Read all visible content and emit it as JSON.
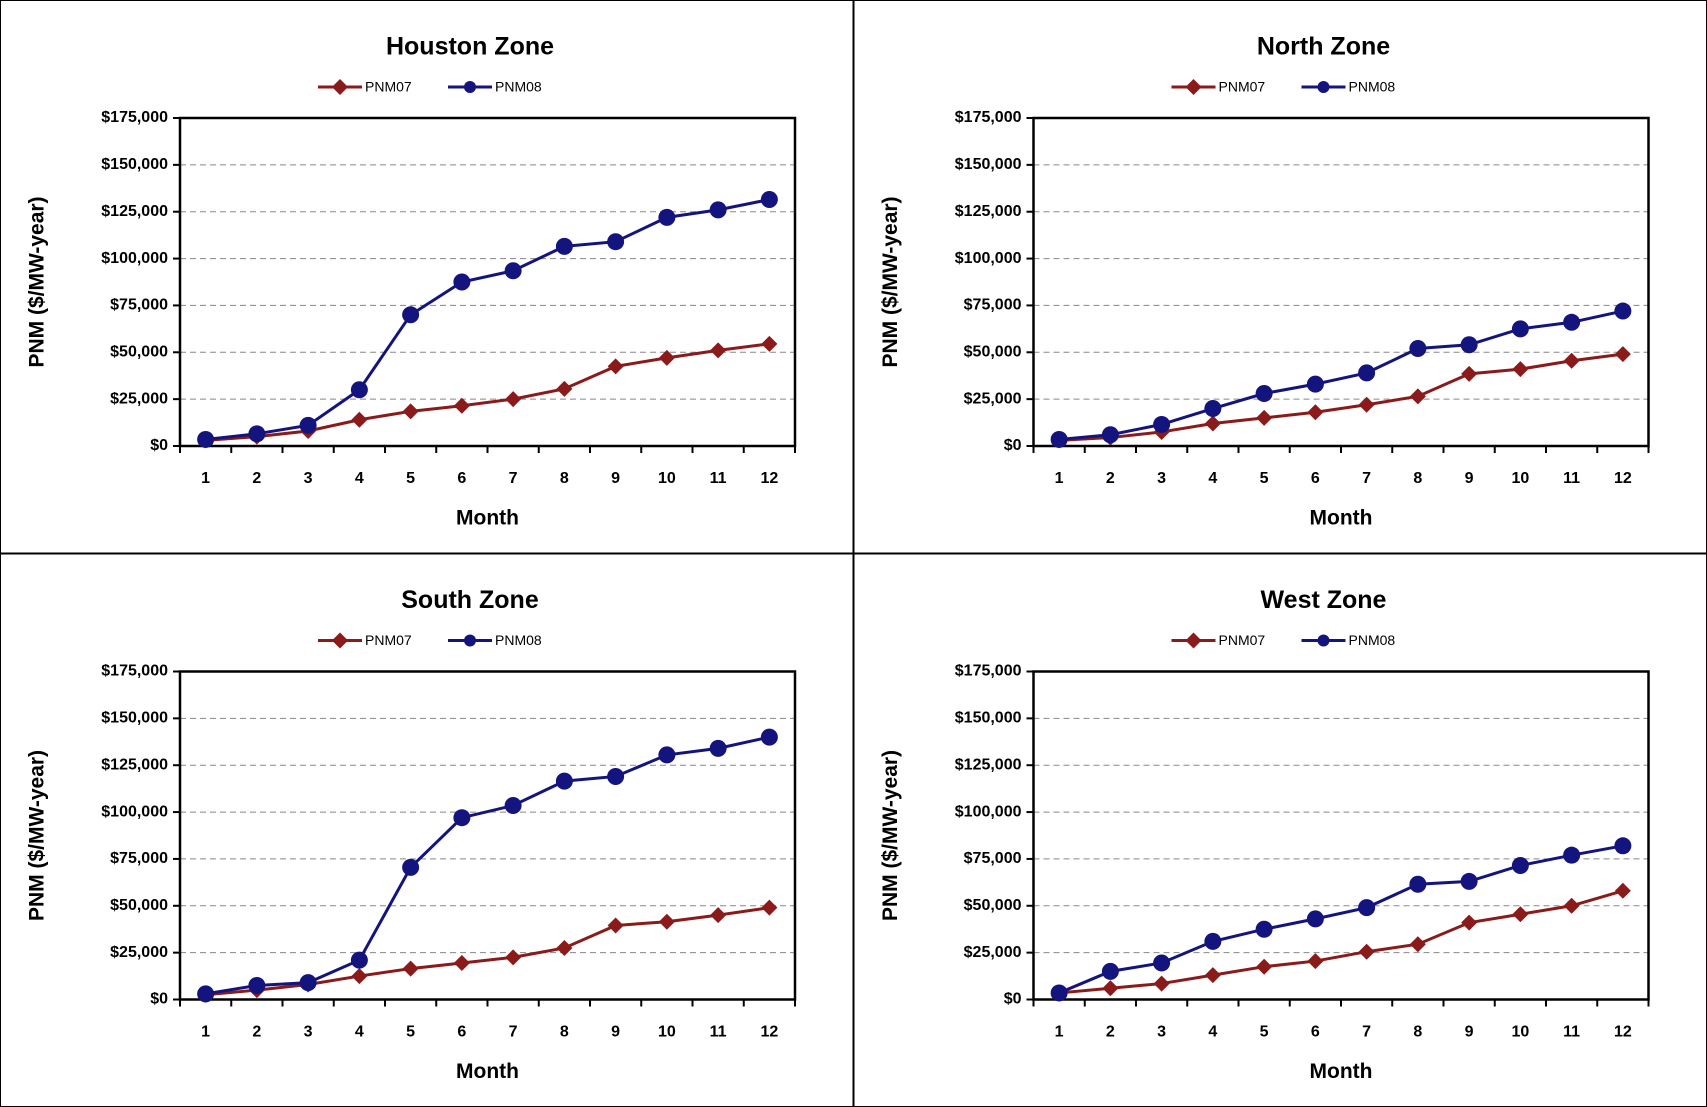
{
  "chart_data": [
    {
      "type": "line",
      "title": "Houston Zone",
      "x_label": "Month",
      "y_label": "PNM ($/MW-year)",
      "categories": [
        "1",
        "2",
        "3",
        "4",
        "5",
        "6",
        "7",
        "8",
        "9",
        "10",
        "11",
        "12"
      ],
      "series": [
        {
          "name": "PNM07",
          "color": "#8b1a1a",
          "marker": "diamond",
          "values": [
            3000,
            5000,
            8000,
            14000,
            18500,
            21500,
            25000,
            30500,
            42500,
            47000,
            51000,
            54500
          ]
        },
        {
          "name": "PNM08",
          "color": "#14147f",
          "marker": "circle",
          "values": [
            3500,
            6500,
            11000,
            30000,
            70000,
            87500,
            93500,
            106500,
            109000,
            122000,
            126000,
            131500
          ]
        }
      ],
      "ylim": [
        0,
        175000
      ],
      "yticks": [
        {
          "value": 0,
          "label": "$0"
        },
        {
          "value": 25000,
          "label": "$25,000"
        },
        {
          "value": 50000,
          "label": "$50,000"
        },
        {
          "value": 75000,
          "label": "$75,000"
        },
        {
          "value": 100000,
          "label": "$100,000"
        },
        {
          "value": 125000,
          "label": "$125,000"
        },
        {
          "value": 150000,
          "label": "$150,000"
        },
        {
          "value": 175000,
          "label": "$175,000"
        }
      ],
      "grid": true,
      "legend": "top"
    },
    {
      "type": "line",
      "title": "North Zone",
      "x_label": "Month",
      "y_label": "PNM ($/MW-year)",
      "categories": [
        "1",
        "2",
        "3",
        "4",
        "5",
        "6",
        "7",
        "8",
        "9",
        "10",
        "11",
        "12"
      ],
      "series": [
        {
          "name": "PNM07",
          "color": "#8b1a1a",
          "marker": "diamond",
          "values": [
            3000,
            4500,
            7500,
            12000,
            15000,
            18000,
            22000,
            26500,
            38500,
            41000,
            45500,
            49000
          ]
        },
        {
          "name": "PNM08",
          "color": "#14147f",
          "marker": "circle",
          "values": [
            3500,
            6000,
            11500,
            20000,
            28000,
            33000,
            39000,
            52000,
            54000,
            62500,
            66000,
            72000
          ]
        }
      ],
      "ylim": [
        0,
        175000
      ],
      "yticks": [
        {
          "value": 0,
          "label": "$0"
        },
        {
          "value": 25000,
          "label": "$25,000"
        },
        {
          "value": 50000,
          "label": "$50,000"
        },
        {
          "value": 75000,
          "label": "$75,000"
        },
        {
          "value": 100000,
          "label": "$100,000"
        },
        {
          "value": 125000,
          "label": "$125,000"
        },
        {
          "value": 150000,
          "label": "$150,000"
        },
        {
          "value": 175000,
          "label": "$175,000"
        }
      ],
      "grid": true,
      "legend": "top"
    },
    {
      "type": "line",
      "title": "South Zone",
      "x_label": "Month",
      "y_label": "PNM ($/MW-year)",
      "categories": [
        "1",
        "2",
        "3",
        "4",
        "5",
        "6",
        "7",
        "8",
        "9",
        "10",
        "11",
        "12"
      ],
      "series": [
        {
          "name": "PNM07",
          "color": "#8b1a1a",
          "marker": "diamond",
          "values": [
            2500,
            5000,
            8000,
            12500,
            16500,
            19500,
            22500,
            27500,
            39500,
            41500,
            45000,
            49000
          ]
        },
        {
          "name": "PNM08",
          "color": "#14147f",
          "marker": "circle",
          "values": [
            3000,
            7500,
            9000,
            21000,
            70500,
            97000,
            103500,
            116500,
            119000,
            130500,
            134000,
            140000
          ]
        }
      ],
      "ylim": [
        0,
        175000
      ],
      "yticks": [
        {
          "value": 0,
          "label": "$0"
        },
        {
          "value": 25000,
          "label": "$25,000"
        },
        {
          "value": 50000,
          "label": "$50,000"
        },
        {
          "value": 75000,
          "label": "$75,000"
        },
        {
          "value": 100000,
          "label": "$100,000"
        },
        {
          "value": 125000,
          "label": "$125,000"
        },
        {
          "value": 150000,
          "label": "$150,000"
        },
        {
          "value": 175000,
          "label": "$175,000"
        }
      ],
      "grid": true,
      "legend": "top"
    },
    {
      "type": "line",
      "title": "West Zone",
      "x_label": "Month",
      "y_label": "PNM ($/MW-year)",
      "categories": [
        "1",
        "2",
        "3",
        "4",
        "5",
        "6",
        "7",
        "8",
        "9",
        "10",
        "11",
        "12"
      ],
      "series": [
        {
          "name": "PNM07",
          "color": "#8b1a1a",
          "marker": "diamond",
          "values": [
            3500,
            6000,
            8500,
            13000,
            17500,
            20500,
            25500,
            29500,
            41000,
            45500,
            50000,
            58000
          ]
        },
        {
          "name": "PNM08",
          "color": "#14147f",
          "marker": "circle",
          "values": [
            3500,
            15000,
            19500,
            31000,
            37500,
            43000,
            49000,
            61500,
            63000,
            71500,
            77000,
            82000
          ]
        }
      ],
      "ylim": [
        0,
        175000
      ],
      "yticks": [
        {
          "value": 0,
          "label": "$0"
        },
        {
          "value": 25000,
          "label": "$25,000"
        },
        {
          "value": 50000,
          "label": "$50,000"
        },
        {
          "value": 75000,
          "label": "$75,000"
        },
        {
          "value": 100000,
          "label": "$100,000"
        },
        {
          "value": 125000,
          "label": "$125,000"
        },
        {
          "value": 150000,
          "label": "$150,000"
        },
        {
          "value": 175000,
          "label": "$175,000"
        }
      ],
      "grid": true,
      "legend": "top"
    }
  ]
}
